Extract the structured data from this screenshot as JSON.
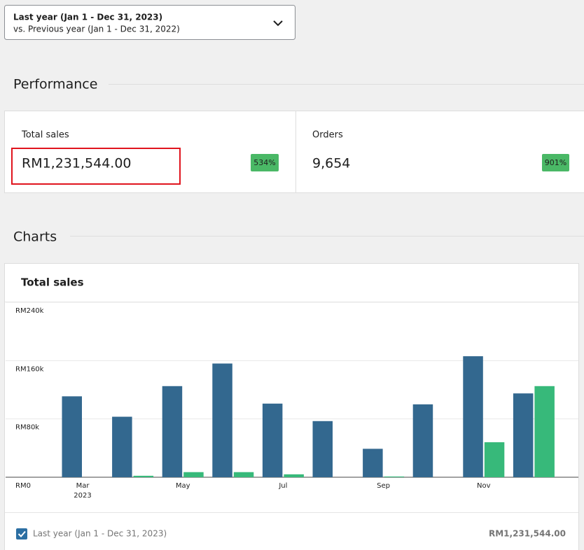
{
  "date_range": {
    "primary": "Last year (Jan 1 - Dec 31, 2023)",
    "secondary": "vs. Previous year (Jan 1 - Dec 31, 2022)"
  },
  "performance": {
    "heading": "Performance",
    "cards": [
      {
        "label": "Total sales",
        "value": "RM1,231,544.00",
        "change": "534%"
      },
      {
        "label": "Orders",
        "value": "9,654",
        "change": "901%"
      }
    ]
  },
  "charts": {
    "heading": "Charts",
    "panel_title": "Total sales",
    "legend_total": "RM1,231,544.00"
  },
  "chart_data": {
    "type": "bar",
    "categories": [
      "Mar",
      null,
      "May",
      null,
      "Jul",
      null,
      "Sep",
      null,
      "Nov",
      null
    ],
    "year_label": "2023",
    "series": [
      {
        "name": "Last year (Jan 1 - Dec 31, 2023)",
        "color": "#33688f",
        "values": [
          111000,
          83000,
          125000,
          156000,
          101000,
          77000,
          39000,
          100000,
          166000,
          115000
        ]
      },
      {
        "color": "#37b97a",
        "values": [
          0,
          2000,
          7000,
          7000,
          4000,
          0,
          1000,
          0,
          48000,
          125000
        ]
      }
    ],
    "ylim": [
      0,
      240000
    ],
    "yticks": [
      {
        "value": 0,
        "label": "RM0"
      },
      {
        "value": 80000,
        "label": "RM80k"
      },
      {
        "value": 160000,
        "label": "RM160k"
      },
      {
        "value": 240000,
        "label": "RM240k"
      }
    ],
    "grid": true
  }
}
